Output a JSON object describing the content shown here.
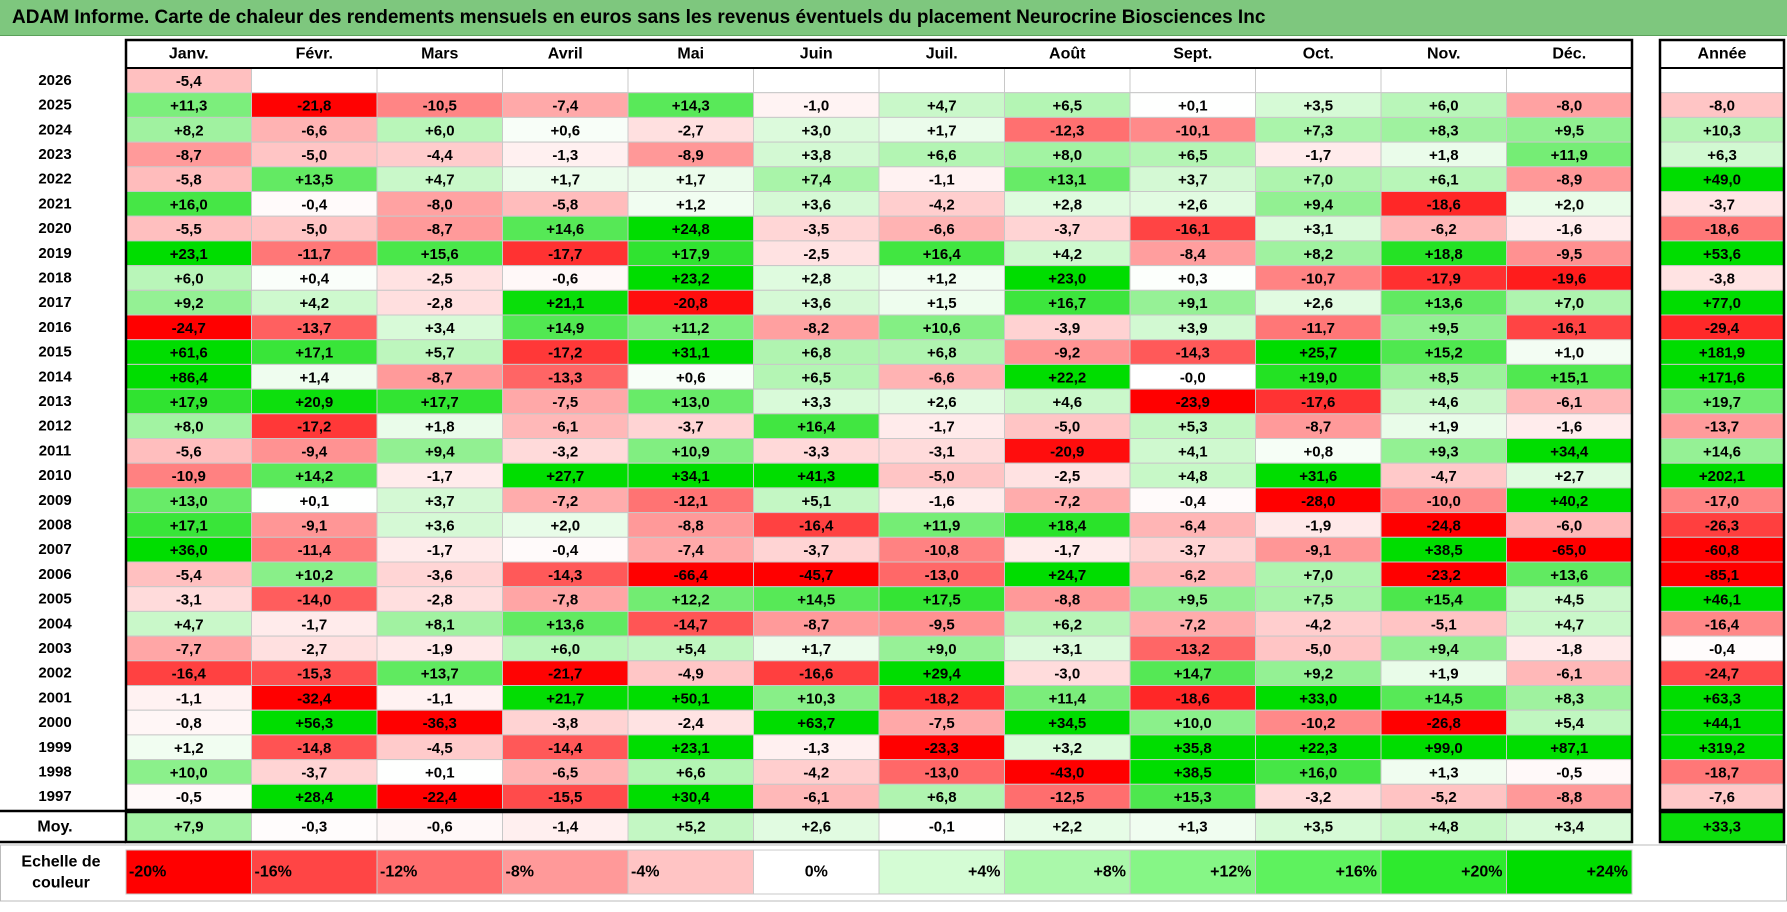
{
  "title": "ADAM Informe. Carte de chaleur des rendements mensuels en euros sans les revenus éventuels du placement Neurocrine Biosciences Inc",
  "chart_data": {
    "type": "heatmap",
    "columns": [
      "Janv.",
      "Févr.",
      "Mars",
      "Avril",
      "Mai",
      "Juin",
      "Juil.",
      "Août",
      "Sept.",
      "Oct.",
      "Nov.",
      "Déc."
    ],
    "year_column_label": "Année",
    "average_row_label": "Moy.",
    "rows": [
      {
        "year": "2026",
        "months": [
          "-5,4",
          "",
          "",
          "",
          "",
          "",
          "",
          "",
          "",
          "",
          "",
          ""
        ],
        "annual": ""
      },
      {
        "year": "2025",
        "months": [
          "+11,3",
          "-21,8",
          "-10,5",
          "-7,4",
          "+14,3",
          "-1,0",
          "+4,7",
          "+6,5",
          "+0,1",
          "+3,5",
          "+6,0",
          "-8,0"
        ],
        "annual": "-8,0"
      },
      {
        "year": "2024",
        "months": [
          "+8,2",
          "-6,6",
          "+6,0",
          "+0,6",
          "-2,7",
          "+3,0",
          "+1,7",
          "-12,3",
          "-10,1",
          "+7,3",
          "+8,3",
          "+9,5"
        ],
        "annual": "+10,3"
      },
      {
        "year": "2023",
        "months": [
          "-8,7",
          "-5,0",
          "-4,4",
          "-1,3",
          "-8,9",
          "+3,8",
          "+6,6",
          "+8,0",
          "+6,5",
          "-1,7",
          "+1,8",
          "+11,9"
        ],
        "annual": "+6,3"
      },
      {
        "year": "2022",
        "months": [
          "-5,8",
          "+13,5",
          "+4,7",
          "+1,7",
          "+1,7",
          "+7,4",
          "-1,1",
          "+13,1",
          "+3,7",
          "+7,0",
          "+6,1",
          "-8,9"
        ],
        "annual": "+49,0"
      },
      {
        "year": "2021",
        "months": [
          "+16,0",
          "-0,4",
          "-8,0",
          "-5,8",
          "+1,2",
          "+3,6",
          "-4,2",
          "+2,8",
          "+2,6",
          "+9,4",
          "-18,6",
          "+2,0"
        ],
        "annual": "-3,7"
      },
      {
        "year": "2020",
        "months": [
          "-5,5",
          "-5,0",
          "-8,7",
          "+14,6",
          "+24,8",
          "-3,5",
          "-6,6",
          "-3,7",
          "-16,1",
          "+3,1",
          "-6,2",
          "-1,6"
        ],
        "annual": "-18,6"
      },
      {
        "year": "2019",
        "months": [
          "+23,1",
          "-11,7",
          "+15,6",
          "-17,7",
          "+17,9",
          "-2,5",
          "+16,4",
          "+4,2",
          "-8,4",
          "+8,2",
          "+18,8",
          "-9,5"
        ],
        "annual": "+53,6"
      },
      {
        "year": "2018",
        "months": [
          "+6,0",
          "+0,4",
          "-2,5",
          "-0,6",
          "+23,2",
          "+2,8",
          "+1,2",
          "+23,0",
          "+0,3",
          "-10,7",
          "-17,9",
          "-19,6"
        ],
        "annual": "-3,8"
      },
      {
        "year": "2017",
        "months": [
          "+9,2",
          "+4,2",
          "-2,8",
          "+21,1",
          "-20,8",
          "+3,6",
          "+1,5",
          "+16,7",
          "+9,1",
          "+2,6",
          "+13,6",
          "+7,0"
        ],
        "annual": "+77,0"
      },
      {
        "year": "2016",
        "months": [
          "-24,7",
          "-13,7",
          "+3,4",
          "+14,9",
          "+11,2",
          "-8,2",
          "+10,6",
          "-3,9",
          "+3,9",
          "-11,7",
          "+9,5",
          "-16,1"
        ],
        "annual": "-29,4"
      },
      {
        "year": "2015",
        "months": [
          "+61,6",
          "+17,1",
          "+5,7",
          "-17,2",
          "+31,1",
          "+6,8",
          "+6,8",
          "-9,2",
          "-14,3",
          "+25,7",
          "+15,2",
          "+1,0"
        ],
        "annual": "+181,9"
      },
      {
        "year": "2014",
        "months": [
          "+86,4",
          "+1,4",
          "-8,7",
          "-13,3",
          "+0,6",
          "+6,5",
          "-6,6",
          "+22,2",
          "-0,0",
          "+19,0",
          "+8,5",
          "+15,1"
        ],
        "annual": "+171,6"
      },
      {
        "year": "2013",
        "months": [
          "+17,9",
          "+20,9",
          "+17,7",
          "-7,5",
          "+13,0",
          "+3,3",
          "+2,6",
          "+4,6",
          "-23,9",
          "-17,6",
          "+4,6",
          "-6,1"
        ],
        "annual": "+19,7"
      },
      {
        "year": "2012",
        "months": [
          "+8,0",
          "-17,2",
          "+1,8",
          "-6,1",
          "-3,7",
          "+16,4",
          "-1,7",
          "-5,0",
          "+5,3",
          "-8,7",
          "+1,9",
          "-1,6"
        ],
        "annual": "-13,7"
      },
      {
        "year": "2011",
        "months": [
          "-5,6",
          "-9,4",
          "+9,4",
          "-3,2",
          "+10,9",
          "-3,3",
          "-3,1",
          "-20,9",
          "+4,1",
          "+0,8",
          "+9,3",
          "+34,4"
        ],
        "annual": "+14,6"
      },
      {
        "year": "2010",
        "months": [
          "-10,9",
          "+14,2",
          "-1,7",
          "+27,7",
          "+34,1",
          "+41,3",
          "-5,0",
          "-2,5",
          "+4,8",
          "+31,6",
          "-4,7",
          "+2,7"
        ],
        "annual": "+202,1"
      },
      {
        "year": "2009",
        "months": [
          "+13,0",
          "+0,1",
          "+3,7",
          "-7,2",
          "-12,1",
          "+5,1",
          "-1,6",
          "-7,2",
          "-0,4",
          "-28,0",
          "-10,0",
          "+40,2"
        ],
        "annual": "-17,0"
      },
      {
        "year": "2008",
        "months": [
          "+17,1",
          "-9,1",
          "+3,6",
          "+2,0",
          "-8,8",
          "-16,4",
          "+11,9",
          "+18,4",
          "-6,4",
          "-1,9",
          "-24,8",
          "-6,0"
        ],
        "annual": "-26,3"
      },
      {
        "year": "2007",
        "months": [
          "+36,0",
          "-11,4",
          "-1,7",
          "-0,4",
          "-7,4",
          "-3,7",
          "-10,8",
          "-1,7",
          "-3,7",
          "-9,1",
          "+38,5",
          "-65,0"
        ],
        "annual": "-60,8"
      },
      {
        "year": "2006",
        "months": [
          "-5,4",
          "+10,2",
          "-3,6",
          "-14,3",
          "-66,4",
          "-45,7",
          "-13,0",
          "+24,7",
          "-6,2",
          "+7,0",
          "-23,2",
          "+13,6"
        ],
        "annual": "-85,1"
      },
      {
        "year": "2005",
        "months": [
          "-3,1",
          "-14,0",
          "-2,8",
          "-7,8",
          "+12,2",
          "+14,5",
          "+17,5",
          "-8,8",
          "+9,5",
          "+7,5",
          "+15,4",
          "+4,5"
        ],
        "annual": "+46,1"
      },
      {
        "year": "2004",
        "months": [
          "+4,7",
          "-1,7",
          "+8,1",
          "+13,6",
          "-14,7",
          "-8,7",
          "-9,5",
          "+6,2",
          "-7,2",
          "-4,2",
          "-5,1",
          "+4,7"
        ],
        "annual": "-16,4"
      },
      {
        "year": "2003",
        "months": [
          "-7,7",
          "-2,7",
          "-1,9",
          "+6,0",
          "+5,4",
          "+1,7",
          "+9,0",
          "+3,1",
          "-13,2",
          "-5,0",
          "+9,4",
          "-1,8"
        ],
        "annual": "-0,4"
      },
      {
        "year": "2002",
        "months": [
          "-16,4",
          "-15,3",
          "+13,7",
          "-21,7",
          "-4,9",
          "-16,6",
          "+29,4",
          "-3,0",
          "+14,7",
          "+9,2",
          "+1,9",
          "-6,1"
        ],
        "annual": "-24,7"
      },
      {
        "year": "2001",
        "months": [
          "-1,1",
          "-32,4",
          "-1,1",
          "+21,7",
          "+50,1",
          "+10,3",
          "-18,2",
          "+11,4",
          "-18,6",
          "+33,0",
          "+14,5",
          "+8,3"
        ],
        "annual": "+63,3"
      },
      {
        "year": "2000",
        "months": [
          "-0,8",
          "+56,3",
          "-36,3",
          "-3,8",
          "-2,4",
          "+63,7",
          "-7,5",
          "+34,5",
          "+10,0",
          "-10,2",
          "-26,8",
          "+5,4"
        ],
        "annual": "+44,1"
      },
      {
        "year": "1999",
        "months": [
          "+1,2",
          "-14,8",
          "-4,5",
          "-14,4",
          "+23,1",
          "-1,3",
          "-23,3",
          "+3,2",
          "+35,8",
          "+22,3",
          "+99,0",
          "+87,1"
        ],
        "annual": "+319,2"
      },
      {
        "year": "1998",
        "months": [
          "+10,0",
          "-3,7",
          "+0,1",
          "-6,5",
          "+6,6",
          "-4,2",
          "-13,0",
          "-43,0",
          "+38,5",
          "+16,0",
          "+1,3",
          "-0,5"
        ],
        "annual": "-18,7"
      },
      {
        "year": "1997",
        "months": [
          "-0,5",
          "+28,4",
          "-22,4",
          "-15,5",
          "+30,4",
          "-6,1",
          "+6,8",
          "-12,5",
          "+15,3",
          "-3,2",
          "-5,2",
          "-8,8"
        ],
        "annual": "-7,6"
      }
    ],
    "average": {
      "months": [
        "+7,9",
        "-0,3",
        "-0,6",
        "-1,4",
        "+5,2",
        "+2,6",
        "-0,1",
        "+2,2",
        "+1,3",
        "+3,5",
        "+4,8",
        "+3,4"
      ],
      "annual": "+33,3"
    },
    "scale": {
      "label_lines": [
        "Echelle de",
        "couleur"
      ],
      "steps": [
        "-20%",
        "-16%",
        "-12%",
        "-8%",
        "-4%",
        "0%",
        "+4%",
        "+8%",
        "+12%",
        "+16%",
        "+20%",
        "+24%"
      ],
      "colors": [
        "#ff0000",
        "#ff4545",
        "#ff6e6e",
        "#ff9999",
        "#ffc4c4",
        "#ffffff",
        "#d4fcd4",
        "#aaf8aa",
        "#86f686",
        "#5ef25e",
        "#2eea2e",
        "#00dd00"
      ]
    },
    "colors": {
      "red": "#ff0000",
      "green": "#00dd00",
      "white": "#ffffff",
      "header_bg": "#7ec77e",
      "grid": "#bbbbbb"
    }
  }
}
